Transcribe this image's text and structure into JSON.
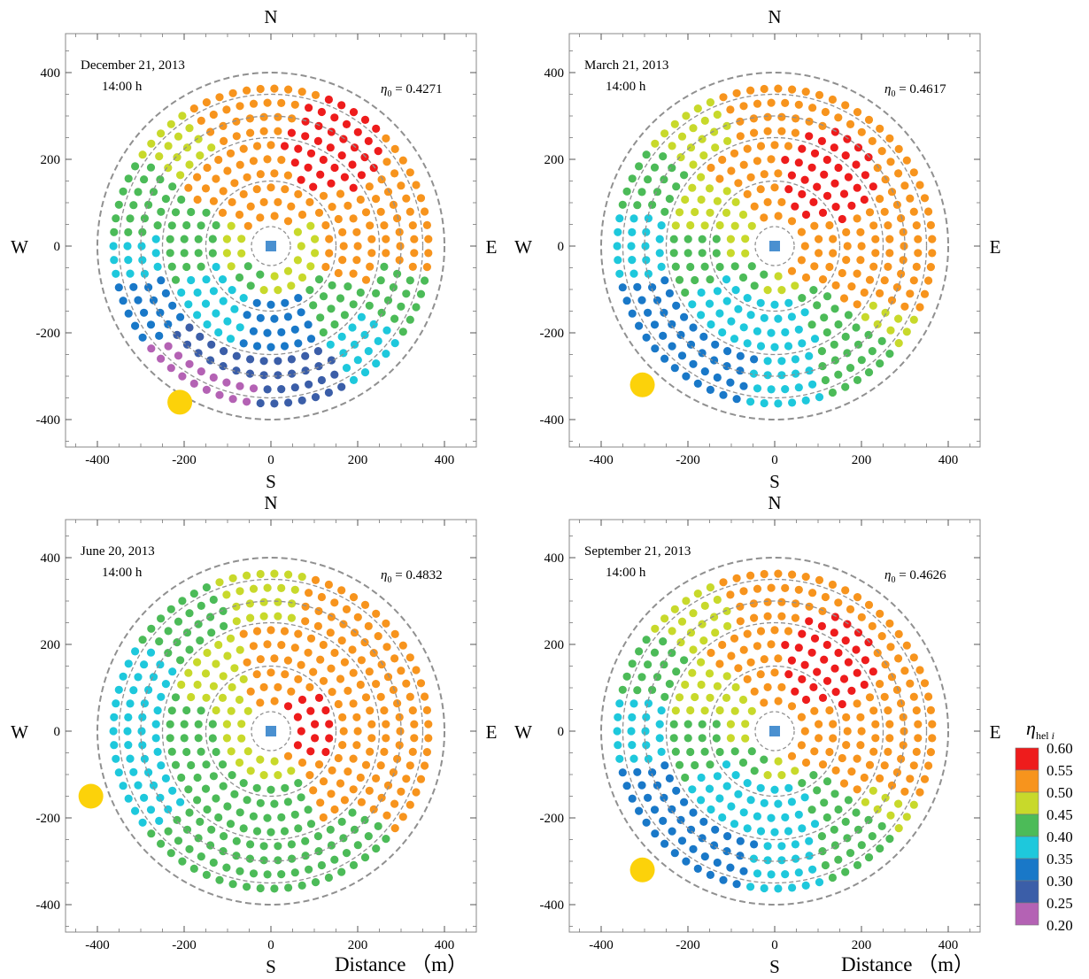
{
  "chart_data": {
    "type": "scatter",
    "description_units": "m",
    "x_axis_label": "Distance （m）",
    "compass": {
      "north": "N",
      "south": "S",
      "east": "E",
      "west": "W"
    },
    "ticks": [
      -400,
      -200,
      0,
      200,
      400
    ],
    "tick_labels": [
      "-400",
      "-200",
      "0",
      "200",
      "400"
    ],
    "xlim": [
      -460,
      460
    ],
    "ylim": [
      -460,
      490
    ],
    "field_radius": 400,
    "inner_radius": 45,
    "zone_circles": [
      150,
      250,
      300,
      350
    ],
    "panels": [
      {
        "date": "December 21, 2013",
        "time": "14:00 h",
        "eta_label": "η₀",
        "eta_value": "= 0.4271",
        "sun": {
          "x": -210,
          "y": -360
        },
        "field_rule": {
          "type": "dec",
          "hot": {
            "x": 140,
            "y": 230,
            "r": 110
          }
        }
      },
      {
        "date": "March 21, 2013",
        "time": "14:00 h",
        "eta_label": "η₀",
        "eta_value": "= 0.4617",
        "sun": {
          "x": -305,
          "y": -320
        },
        "field_rule": {
          "type": "mar",
          "hot": {
            "x": 125,
            "y": 160,
            "r": 110
          }
        }
      },
      {
        "date": "June 20, 2013",
        "time": "14:00 h",
        "eta_label": "η₀",
        "eta_value": "= 0.4832",
        "sun": {
          "x": -415,
          "y": -150
        },
        "field_rule": {
          "type": "jun",
          "hot": {
            "x": 85,
            "y": 15,
            "r": 80
          }
        }
      },
      {
        "date": "September 21, 2013",
        "time": "14:00 h",
        "eta_label": "η₀",
        "eta_value": "= 0.4626",
        "sun": {
          "x": -305,
          "y": -320
        },
        "field_rule": {
          "type": "sep",
          "hot": {
            "x": 125,
            "y": 160,
            "r": 110
          }
        }
      }
    ],
    "legend": {
      "title": "η hel i",
      "tick_labels": [
        "0.60",
        "0.55",
        "0.50",
        "0.45",
        "0.40",
        "0.35",
        "0.30",
        "0.25",
        "0.20"
      ],
      "colors": [
        "#ee1c1c",
        "#f7941d",
        "#c8d92b",
        "#4cbb58",
        "#1ec8dc",
        "#1978c8",
        "#3b5ea8",
        "#b462b4"
      ]
    },
    "tower_color": "#4a90d0",
    "sun_color": "#fcd20a",
    "circle_color": "#909090"
  }
}
